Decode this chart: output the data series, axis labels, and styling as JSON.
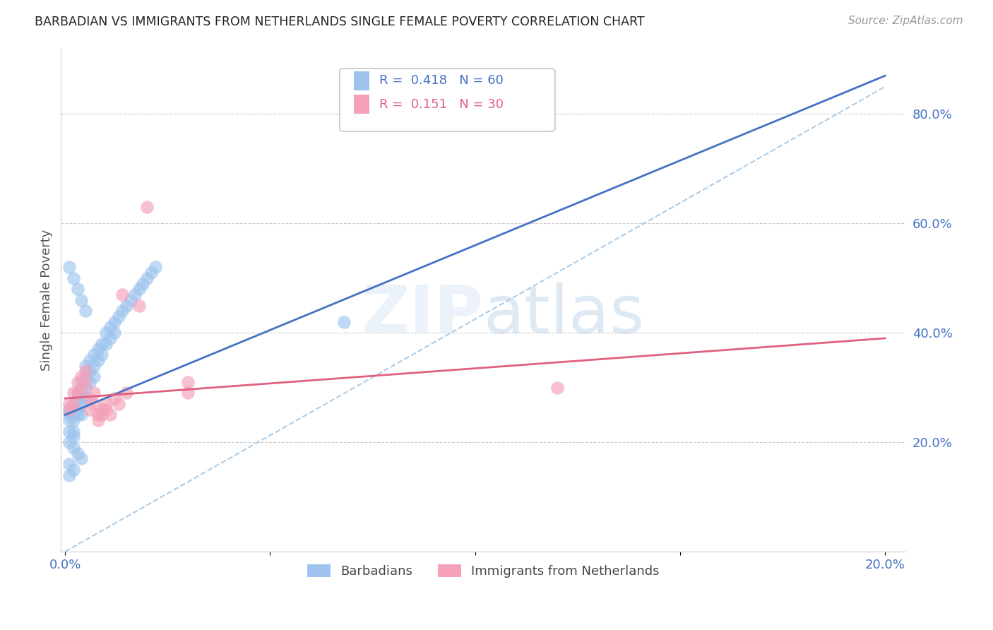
{
  "title": "BARBADIAN VS IMMIGRANTS FROM NETHERLANDS SINGLE FEMALE POVERTY CORRELATION CHART",
  "source": "Source: ZipAtlas.com",
  "ylabel": "Single Female Poverty",
  "blue_R": 0.418,
  "blue_N": 60,
  "pink_R": 0.151,
  "pink_N": 30,
  "blue_color": "#9DC3EE",
  "pink_color": "#F4A0B8",
  "blue_line_color": "#4472C4",
  "pink_line_color": "#E06080",
  "diag_line_color": "#AACCE8",
  "legend_label_blue": "Barbadians",
  "legend_label_pink": "Immigrants from Netherlands",
  "blue_x": [
    0.001,
    0.001,
    0.001,
    0.001,
    0.002,
    0.002,
    0.002,
    0.002,
    0.002,
    0.003,
    0.003,
    0.003,
    0.003,
    0.004,
    0.004,
    0.004,
    0.004,
    0.005,
    0.005,
    0.005,
    0.005,
    0.006,
    0.006,
    0.006,
    0.007,
    0.007,
    0.007,
    0.008,
    0.008,
    0.009,
    0.009,
    0.01,
    0.01,
    0.011,
    0.011,
    0.012,
    0.012,
    0.013,
    0.014,
    0.015,
    0.016,
    0.017,
    0.018,
    0.019,
    0.02,
    0.021,
    0.022,
    0.001,
    0.002,
    0.003,
    0.004,
    0.005,
    0.001,
    0.002,
    0.003,
    0.004,
    0.001,
    0.002,
    0.068,
    0.001
  ],
  "blue_y": [
    0.26,
    0.25,
    0.24,
    0.22,
    0.27,
    0.25,
    0.24,
    0.22,
    0.21,
    0.29,
    0.28,
    0.26,
    0.25,
    0.31,
    0.29,
    0.27,
    0.25,
    0.34,
    0.32,
    0.3,
    0.28,
    0.35,
    0.33,
    0.31,
    0.36,
    0.34,
    0.32,
    0.37,
    0.35,
    0.38,
    0.36,
    0.4,
    0.38,
    0.41,
    0.39,
    0.42,
    0.4,
    0.43,
    0.44,
    0.45,
    0.46,
    0.47,
    0.48,
    0.49,
    0.5,
    0.51,
    0.52,
    0.52,
    0.5,
    0.48,
    0.46,
    0.44,
    0.2,
    0.19,
    0.18,
    0.17,
    0.16,
    0.15,
    0.42,
    0.14
  ],
  "pink_x": [
    0.001,
    0.001,
    0.002,
    0.002,
    0.003,
    0.003,
    0.004,
    0.004,
    0.005,
    0.005,
    0.006,
    0.006,
    0.007,
    0.007,
    0.008,
    0.008,
    0.009,
    0.009,
    0.01,
    0.01,
    0.011,
    0.012,
    0.013,
    0.014,
    0.015,
    0.02,
    0.03,
    0.03,
    0.12,
    0.018
  ],
  "pink_y": [
    0.27,
    0.26,
    0.29,
    0.27,
    0.31,
    0.29,
    0.32,
    0.3,
    0.33,
    0.31,
    0.28,
    0.26,
    0.29,
    0.27,
    0.25,
    0.24,
    0.26,
    0.25,
    0.27,
    0.26,
    0.25,
    0.28,
    0.27,
    0.47,
    0.29,
    0.63,
    0.29,
    0.31,
    0.3,
    0.45
  ]
}
